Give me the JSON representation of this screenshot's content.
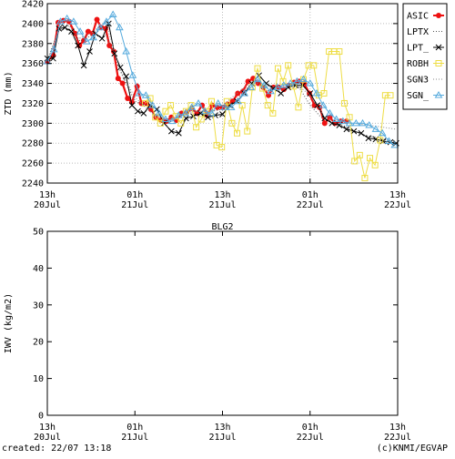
{
  "footer": {
    "created": "created: 22/07 13:18",
    "credit": "(c)KNMI/EGVAP"
  },
  "chart_data": [
    {
      "type": "line",
      "title": "",
      "xlabel": "",
      "ylabel": "ZTD (mm)",
      "xlim": [
        0,
        48
      ],
      "ylim": [
        2240,
        2420
      ],
      "yticks": [
        2240,
        2260,
        2280,
        2300,
        2320,
        2340,
        2360,
        2380,
        2400,
        2420
      ],
      "xticks": [
        {
          "x": 0,
          "top": "13h",
          "bottom": "20Jul"
        },
        {
          "x": 12,
          "top": "01h",
          "bottom": "21Jul"
        },
        {
          "x": 24,
          "top": "13h",
          "bottom": "21Jul"
        },
        {
          "x": 36,
          "top": "01h",
          "bottom": "22Jul"
        },
        {
          "x": 48,
          "top": "13h",
          "bottom": "22Jul"
        }
      ],
      "grid": true,
      "legend_position": "right",
      "series": [
        {
          "name": "ASIC",
          "color": "#ee1111",
          "marker": "dot",
          "x": [
            0,
            0.8,
            1.5,
            2.2,
            3,
            3.8,
            4.4,
            5,
            5.6,
            6.2,
            6.8,
            7.4,
            8,
            8.5,
            9.1,
            9.7,
            10.3,
            11,
            11.6,
            12.3,
            12.9,
            13.6,
            14.2,
            14.9,
            15.6,
            16.3,
            17,
            17.7,
            18.4,
            19.1,
            19.8,
            20.5,
            21.2,
            21.9,
            22.6,
            23.3,
            24,
            24.7,
            25.4,
            26.1,
            26.8,
            27.5,
            28.2,
            28.9,
            29.6,
            30.3,
            31,
            31.7,
            32.4,
            33.1,
            33.8,
            34.5,
            35.2,
            35.9,
            36.6,
            37.3,
            38,
            38.7,
            39.4,
            40.2,
            41
          ],
          "y": [
            2362,
            2368,
            2401,
            2403,
            2402,
            2390,
            2378,
            2383,
            2392,
            2390,
            2404,
            2396,
            2395,
            2378,
            2372,
            2345,
            2340,
            2325,
            2321,
            2337,
            2320,
            2320,
            2314,
            2306,
            2303,
            2302,
            2306,
            2303,
            2310,
            2311,
            2315,
            2310,
            2318,
            2308,
            2318,
            2316,
            2316,
            2319,
            2322,
            2330,
            2332,
            2342,
            2345,
            2340,
            2336,
            2328,
            2336,
            2336,
            2334,
            2338,
            2341,
            2342,
            2340,
            2330,
            2318,
            2316,
            2300,
            2306,
            2300,
            2302,
            2302
          ]
        },
        {
          "name": "LPTX",
          "color": "#555555",
          "marker": "none",
          "dash": "1 2",
          "x": [
            0,
            1.5,
            3,
            4.5,
            6,
            7.5,
            9,
            10.5,
            12,
            13.5,
            15,
            16.5,
            18,
            19.5,
            21,
            22.5,
            24,
            25.5,
            27,
            28.5,
            30,
            31.5,
            33,
            34.5,
            36,
            37.5,
            39,
            40.5,
            42,
            43.5,
            45,
            46.5,
            47.5
          ],
          "y": [
            2364,
            2392,
            2398,
            2382,
            2388,
            2398,
            2372,
            2344,
            2322,
            2318,
            2304,
            2300,
            2306,
            2312,
            2312,
            2312,
            2314,
            2320,
            2332,
            2344,
            2332,
            2336,
            2340,
            2336,
            2318,
            2306,
            2300,
            2298,
            2292,
            2288,
            2286,
            2283,
            2281
          ]
        },
        {
          "name": "LPT_",
          "color": "#000000",
          "marker": "x",
          "x": [
            0,
            0.8,
            1.6,
            2.4,
            3.3,
            4.2,
            5,
            5.8,
            6.6,
            7.5,
            8.4,
            9.2,
            10,
            10.8,
            11.6,
            12.4,
            13.2,
            14.1,
            15,
            16,
            17,
            18,
            19,
            20,
            21,
            22,
            23,
            24,
            25,
            26,
            27,
            28,
            29,
            30,
            31,
            32,
            33,
            34,
            35,
            36,
            37,
            38,
            39,
            40,
            41,
            42,
            43,
            44,
            45,
            46,
            47,
            47.8
          ],
          "y": [
            2365,
            2365,
            2395,
            2396,
            2392,
            2378,
            2358,
            2372,
            2390,
            2385,
            2400,
            2370,
            2356,
            2347,
            2318,
            2312,
            2310,
            2318,
            2314,
            2300,
            2292,
            2290,
            2305,
            2307,
            2310,
            2306,
            2308,
            2309,
            2318,
            2322,
            2330,
            2340,
            2348,
            2340,
            2335,
            2330,
            2336,
            2338,
            2338,
            2330,
            2318,
            2305,
            2300,
            2298,
            2294,
            2292,
            2290,
            2285,
            2284,
            2282,
            2281,
            2280
          ]
        },
        {
          "name": "ROBH",
          "color": "#eedd44",
          "marker": "square",
          "x": [
            13.4,
            14.1,
            14.8,
            15.5,
            16.2,
            16.9,
            17.6,
            18.3,
            19,
            19.7,
            20.4,
            21.1,
            21.8,
            22.5,
            23.2,
            23.9,
            24.6,
            25.3,
            26,
            26.7,
            27.4,
            28.1,
            28.8,
            29.5,
            30.2,
            30.9,
            31.6,
            32.3,
            33,
            33.7,
            34.4,
            35.1,
            35.8,
            36.5,
            37.2,
            37.9,
            38.6,
            39.3,
            40,
            40.7,
            41.4,
            42.1,
            42.8,
            43.5,
            44.2,
            44.9,
            45.6,
            46.3,
            47
          ],
          "y": [
            2320,
            2325,
            2306,
            2300,
            2312,
            2318,
            2307,
            2300,
            2312,
            2318,
            2296,
            2304,
            2312,
            2322,
            2278,
            2276,
            2322,
            2300,
            2290,
            2318,
            2292,
            2336,
            2355,
            2335,
            2318,
            2310,
            2355,
            2342,
            2358,
            2337,
            2316,
            2344,
            2358,
            2358,
            2328,
            2330,
            2372,
            2372,
            2372,
            2320,
            2306,
            2262,
            2268,
            2245,
            2265,
            2258,
            2283,
            2328,
            2328
          ]
        },
        {
          "name": "SGN3",
          "color": "#888888",
          "marker": "none",
          "dash": "1 2",
          "x": [
            0,
            2,
            4,
            6,
            8,
            10,
            12,
            14,
            16,
            18,
            20,
            22,
            24,
            26,
            28,
            30,
            32,
            34,
            36,
            38,
            40,
            42,
            44,
            46,
            47.8
          ],
          "y": [
            2362,
            2400,
            2384,
            2390,
            2402,
            2352,
            2326,
            2312,
            2304,
            2306,
            2312,
            2312,
            2318,
            2330,
            2342,
            2336,
            2336,
            2340,
            2328,
            2306,
            2302,
            2300,
            2298,
            2296,
            2294
          ]
        },
        {
          "name": "SGN_",
          "color": "#55aadd",
          "marker": "triangle",
          "x": [
            0,
            0.9,
            1.8,
            2.7,
            3.6,
            4.5,
            5.4,
            6.3,
            7.2,
            8.1,
            9,
            9.9,
            10.8,
            11.7,
            12.6,
            13.5,
            14.4,
            15.3,
            16.2,
            17.1,
            18,
            18.9,
            19.8,
            20.7,
            21.6,
            22.5,
            23.4,
            24.3,
            25.2,
            26.1,
            27,
            27.9,
            28.8,
            29.7,
            30.6,
            31.5,
            32.4,
            33.3,
            34.2,
            35.1,
            36,
            36.9,
            37.8,
            38.7,
            39.6,
            40.5,
            41.4,
            42.3,
            43.2,
            44.1,
            45,
            45.9,
            46.8,
            47.6
          ],
          "y": [
            2362,
            2374,
            2402,
            2405,
            2402,
            2392,
            2382,
            2386,
            2396,
            2402,
            2409,
            2396,
            2372,
            2348,
            2330,
            2328,
            2318,
            2310,
            2304,
            2302,
            2308,
            2310,
            2316,
            2320,
            2312,
            2310,
            2320,
            2316,
            2316,
            2322,
            2330,
            2336,
            2344,
            2338,
            2332,
            2336,
            2338,
            2340,
            2342,
            2344,
            2340,
            2330,
            2318,
            2310,
            2304,
            2302,
            2300,
            2300,
            2300,
            2298,
            2294,
            2290,
            2282,
            2278
          ]
        }
      ]
    },
    {
      "type": "line",
      "title": "BLG2",
      "xlabel": "",
      "ylabel": "IWV (kg/m2)",
      "xlim": [
        0,
        48
      ],
      "ylim": [
        0,
        50
      ],
      "yticks": [
        0,
        10,
        20,
        30,
        40,
        50
      ],
      "xticks": [
        {
          "x": 0,
          "top": "13h",
          "bottom": "20Jul"
        },
        {
          "x": 12,
          "top": "01h",
          "bottom": "21Jul"
        },
        {
          "x": 24,
          "top": "13h",
          "bottom": "21Jul"
        },
        {
          "x": 36,
          "top": "01h",
          "bottom": "22Jul"
        },
        {
          "x": 48,
          "top": "13h",
          "bottom": "22Jul"
        }
      ],
      "grid": false,
      "series": []
    }
  ]
}
